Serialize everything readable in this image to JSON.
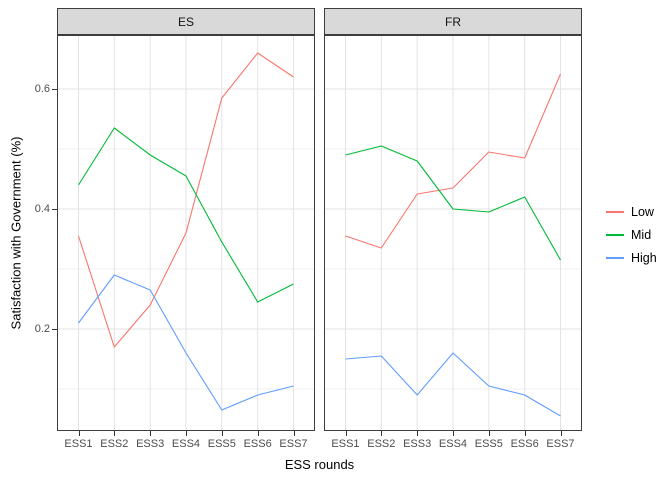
{
  "chart_data": {
    "type": "line",
    "title": "",
    "xlabel": "ESS rounds",
    "ylabel": "Satisfaction with Government (%)",
    "categories": [
      "ESS1",
      "ESS2",
      "ESS3",
      "ESS4",
      "ESS5",
      "ESS6",
      "ESS7"
    ],
    "ylim": [
      0.03,
      0.69
    ],
    "y_ticks": [
      {
        "value": 0.2,
        "label": "0.2"
      },
      {
        "value": 0.4,
        "label": "0.4"
      },
      {
        "value": 0.6,
        "label": "0.6"
      }
    ],
    "y_minor_gridlines": [
      0.1,
      0.3,
      0.5
    ],
    "grid": true,
    "legend_position": "right",
    "facets": [
      {
        "label": "ES",
        "series": [
          {
            "name": "Low",
            "color": "#F8766D",
            "values": [
              0.355,
              0.17,
              0.24,
              0.36,
              0.585,
              0.66,
              0.62
            ]
          },
          {
            "name": "Mid",
            "color": "#00BA38",
            "values": [
              0.44,
              0.535,
              0.49,
              0.455,
              0.345,
              0.245,
              0.275
            ]
          },
          {
            "name": "High",
            "color": "#619CFF",
            "values": [
              0.21,
              0.29,
              0.265,
              0.16,
              0.065,
              0.09,
              0.105
            ]
          }
        ]
      },
      {
        "label": "FR",
        "series": [
          {
            "name": "Low",
            "color": "#F8766D",
            "values": [
              0.355,
              0.335,
              0.425,
              0.435,
              0.495,
              0.485,
              0.625
            ]
          },
          {
            "name": "Mid",
            "color": "#00BA38",
            "values": [
              0.49,
              0.505,
              0.48,
              0.4,
              0.395,
              0.42,
              0.315
            ]
          },
          {
            "name": "High",
            "color": "#619CFF",
            "values": [
              0.15,
              0.155,
              0.09,
              0.16,
              0.105,
              0.09,
              0.055
            ]
          }
        ]
      }
    ]
  },
  "legend": {
    "items": [
      {
        "label": "Low",
        "color": "#F8766D"
      },
      {
        "label": "Mid",
        "color": "#00BA38"
      },
      {
        "label": "High",
        "color": "#619CFF"
      }
    ]
  },
  "theme": {
    "background": "#ffffff",
    "strip_bg": "#d9d9d9",
    "panel_border": "#3d3d3d",
    "grid_major": "#e3e3e3",
    "grid_minor": "#f1f1f1",
    "axis_text": "#4d4d4d",
    "tick_color": "#333333"
  }
}
